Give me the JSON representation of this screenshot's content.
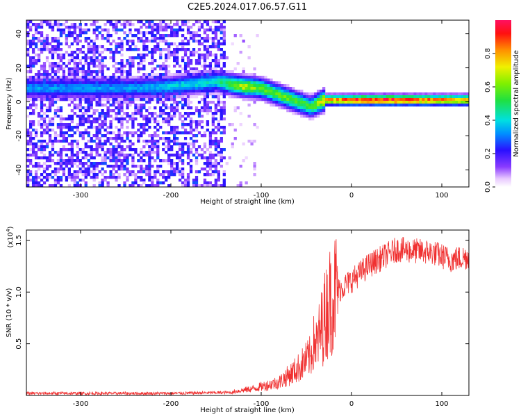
{
  "title": "C2E5.2024.017.06.57.G11",
  "chart_data": [
    {
      "type": "heatmap",
      "xlabel": "Height of straight line (km)",
      "ylabel": "Frequency (Hz)",
      "xlim": [
        -360,
        130
      ],
      "ylim": [
        -50,
        48
      ],
      "xticks": [
        -300,
        -200,
        -100,
        0,
        100
      ],
      "yticks": [
        -40,
        -20,
        0,
        20,
        40
      ],
      "colorbar": {
        "label": "Normalized spectral amplitude",
        "ticks": [
          "0.0",
          "0.2",
          "0.4",
          "0.6",
          "0.8"
        ],
        "range": [
          0,
          1
        ]
      },
      "ridge": {
        "description_points": [
          {
            "x": -250,
            "y": 8,
            "amp": 0.35
          },
          {
            "x": -200,
            "y": 9,
            "amp": 0.4
          },
          {
            "x": -150,
            "y": 12,
            "amp": 0.45
          },
          {
            "x": -120,
            "y": 9,
            "amp": 0.7
          },
          {
            "x": -100,
            "y": 8,
            "amp": 0.6
          },
          {
            "x": -80,
            "y": 4,
            "amp": 0.6
          },
          {
            "x": -60,
            "y": 0,
            "amp": 0.6
          },
          {
            "x": -45,
            "y": -3,
            "amp": 0.55
          },
          {
            "x": -30,
            "y": 1,
            "amp": 0.8
          },
          {
            "x": 0,
            "y": 1,
            "amp": 0.95
          },
          {
            "x": 50,
            "y": 1,
            "amp": 0.98
          },
          {
            "x": 90,
            "y": 1,
            "amp": 0.9
          },
          {
            "x": 130,
            "y": 1,
            "amp": 0.85
          }
        ]
      },
      "colors": {
        "ridge_high": "#e0303a",
        "ridge_mid": "#28d860",
        "noise": "#6020f0"
      }
    },
    {
      "type": "line",
      "xlabel": "Height of straight line (km)",
      "ylabel": "SNR (10 * v/v)",
      "scale_label_base": "(x10",
      "scale_label_exp": "4",
      "scale_label_close": ")",
      "xlim": [
        -360,
        130
      ],
      "ylim": [
        0,
        1.6
      ],
      "xticks": [
        -300,
        -200,
        -100,
        0,
        100
      ],
      "yticks": [
        "0.5",
        "1.0",
        "1.5"
      ],
      "series_color": "#f03030",
      "envelope": [
        {
          "x": -360,
          "y": 0.02
        },
        {
          "x": -200,
          "y": 0.02
        },
        {
          "x": -130,
          "y": 0.03
        },
        {
          "x": -110,
          "y": 0.05
        },
        {
          "x": -80,
          "y": 0.1
        },
        {
          "x": -60,
          "y": 0.2
        },
        {
          "x": -45,
          "y": 0.3
        },
        {
          "x": -35,
          "y": 0.6
        },
        {
          "x": -25,
          "y": 0.9
        },
        {
          "x": -15,
          "y": 1.05
        },
        {
          "x": 0,
          "y": 1.15
        },
        {
          "x": 20,
          "y": 1.3
        },
        {
          "x": 50,
          "y": 1.45
        },
        {
          "x": 90,
          "y": 1.42
        },
        {
          "x": 110,
          "y": 1.35
        },
        {
          "x": 130,
          "y": 1.38
        }
      ]
    }
  ]
}
